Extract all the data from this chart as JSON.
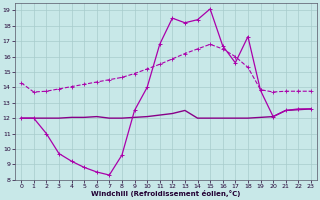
{
  "xlabel": "Windchill (Refroidissement éolien,°C)",
  "x_ticks": [
    0,
    1,
    2,
    3,
    4,
    5,
    6,
    7,
    8,
    9,
    10,
    11,
    12,
    13,
    14,
    15,
    16,
    17,
    18,
    19,
    20,
    21,
    22,
    23
  ],
  "ylim": [
    8,
    19.5
  ],
  "y_ticks": [
    8,
    9,
    10,
    11,
    12,
    13,
    14,
    15,
    16,
    17,
    18,
    19
  ],
  "bg_color": "#c8e8e8",
  "grid_color": "#a8cccc",
  "color_main": "#aa00aa",
  "color_flat": "#880088",
  "s1_y": [
    14.3,
    13.7,
    13.75,
    13.9,
    14.05,
    14.2,
    14.35,
    14.5,
    14.65,
    14.9,
    15.2,
    15.5,
    15.85,
    16.2,
    16.5,
    16.8,
    16.5,
    16.0,
    15.3,
    13.85,
    13.7,
    13.75,
    13.75,
    13.75
  ],
  "s2_y": [
    12.0,
    12.0,
    11.0,
    9.7,
    9.2,
    8.8,
    8.5,
    8.3,
    9.6,
    12.5,
    14.0,
    16.8,
    18.5,
    18.2,
    18.4,
    19.1,
    16.7,
    15.6,
    17.3,
    13.8,
    12.1,
    12.5,
    12.6,
    12.6
  ],
  "s3_y": [
    12.0,
    12.0,
    12.0,
    12.0,
    12.05,
    12.05,
    12.1,
    12.0,
    12.0,
    12.05,
    12.1,
    12.2,
    12.3,
    12.5,
    12.0,
    12.0,
    12.0,
    12.0,
    12.0,
    12.05,
    12.1,
    12.5,
    12.55,
    12.6
  ]
}
